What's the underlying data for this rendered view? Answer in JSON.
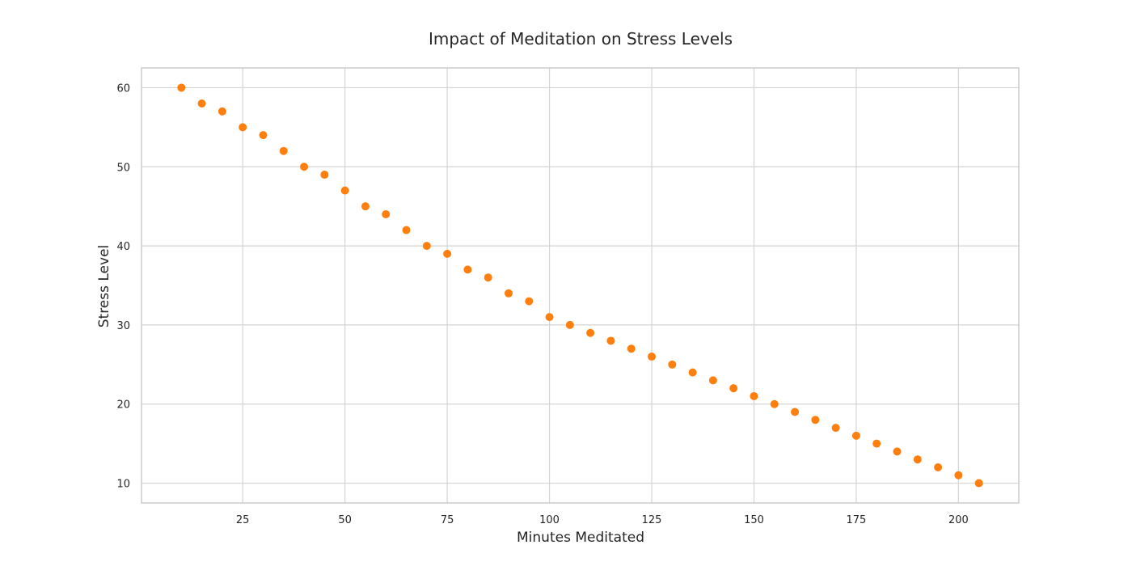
{
  "chart_data": {
    "type": "scatter",
    "title": "Impact of Meditation on Stress Levels",
    "xlabel": "Minutes Meditated",
    "ylabel": "Stress Level",
    "xlim": [
      0.25,
      214.75
    ],
    "ylim": [
      7.5,
      62.5
    ],
    "xticks": [
      25,
      50,
      75,
      100,
      125,
      150,
      175,
      200
    ],
    "yticks": [
      10,
      20,
      30,
      40,
      50,
      60
    ],
    "grid": true,
    "marker_color": "#ff7f0e",
    "x": [
      10,
      15,
      20,
      25,
      30,
      35,
      40,
      45,
      50,
      55,
      60,
      65,
      70,
      75,
      80,
      85,
      90,
      95,
      100,
      105,
      110,
      115,
      120,
      125,
      130,
      135,
      140,
      145,
      150,
      155,
      160,
      165,
      170,
      175,
      180,
      185,
      190,
      195,
      200,
      205
    ],
    "y": [
      60,
      58,
      57,
      55,
      54,
      52,
      50,
      49,
      47,
      45,
      44,
      42,
      40,
      39,
      37,
      36,
      34,
      33,
      31,
      30,
      29,
      28,
      27,
      26,
      25,
      24,
      23,
      22,
      21,
      20,
      19,
      18,
      17,
      16,
      15,
      14,
      13,
      12,
      11,
      10
    ]
  }
}
